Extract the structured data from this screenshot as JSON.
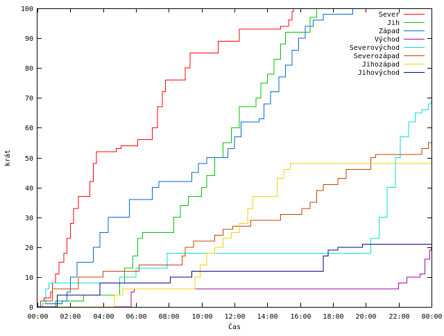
{
  "chart_data": {
    "type": "line",
    "title": "",
    "xlabel": "Čas",
    "ylabel": "krát",
    "xlim": [
      0,
      24
    ],
    "ylim": [
      0,
      100
    ],
    "grid": false,
    "legend_position": "top-right",
    "x_tick_labels": [
      "00:00",
      "02:00",
      "04:00",
      "06:00",
      "08:00",
      "10:00",
      "12:00",
      "14:00",
      "16:00",
      "18:00",
      "20:00",
      "22:00",
      "00:00"
    ],
    "y_tick_labels": [
      "0",
      "10",
      "20",
      "30",
      "40",
      "50",
      "60",
      "70",
      "80",
      "90",
      "100"
    ],
    "x_unit": "hours",
    "series": [
      {
        "name": "Sever",
        "color": "#ff0000",
        "points": [
          [
            0,
            0
          ],
          [
            0.2,
            2
          ],
          [
            0.4,
            3
          ],
          [
            0.7,
            3
          ],
          [
            0.8,
            5
          ],
          [
            0.9,
            8
          ],
          [
            1.1,
            11
          ],
          [
            1.3,
            15
          ],
          [
            1.6,
            18
          ],
          [
            1.8,
            23
          ],
          [
            2.0,
            28
          ],
          [
            2.2,
            33
          ],
          [
            2.5,
            37
          ],
          [
            3.0,
            37
          ],
          [
            3.2,
            42
          ],
          [
            3.4,
            48
          ],
          [
            3.6,
            52
          ],
          [
            4.3,
            52
          ],
          [
            4.8,
            53
          ],
          [
            5.1,
            54
          ],
          [
            5.9,
            54
          ],
          [
            6.1,
            56
          ],
          [
            6.8,
            56
          ],
          [
            7.0,
            60
          ],
          [
            7.3,
            67
          ],
          [
            7.6,
            72
          ],
          [
            7.8,
            76
          ],
          [
            8.7,
            76
          ],
          [
            9.0,
            80
          ],
          [
            9.3,
            85
          ],
          [
            10.8,
            85
          ],
          [
            11.0,
            89
          ],
          [
            12.0,
            89
          ],
          [
            12.3,
            93
          ],
          [
            14.8,
            94
          ],
          [
            15.3,
            96
          ],
          [
            15.5,
            99
          ],
          [
            15.6,
            100
          ]
        ]
      },
      {
        "name": "Jih",
        "color": "#00c000",
        "points": [
          [
            0,
            0
          ],
          [
            1.0,
            0
          ],
          [
            1.1,
            2
          ],
          [
            2.6,
            2
          ],
          [
            2.8,
            4
          ],
          [
            4.6,
            4
          ],
          [
            5.0,
            8
          ],
          [
            5.3,
            13
          ],
          [
            5.8,
            17
          ],
          [
            6.1,
            23
          ],
          [
            6.4,
            25
          ],
          [
            8.0,
            25
          ],
          [
            8.3,
            30
          ],
          [
            8.7,
            34
          ],
          [
            9.2,
            37
          ],
          [
            10.0,
            40
          ],
          [
            10.3,
            44
          ],
          [
            10.8,
            50
          ],
          [
            11.3,
            55
          ],
          [
            11.8,
            60
          ],
          [
            12.3,
            67
          ],
          [
            13.0,
            67
          ],
          [
            13.3,
            70
          ],
          [
            13.6,
            75
          ],
          [
            14.0,
            78
          ],
          [
            14.4,
            83
          ],
          [
            14.8,
            88
          ],
          [
            15.1,
            92
          ],
          [
            16.0,
            92
          ],
          [
            16.6,
            97
          ],
          [
            17.0,
            100
          ]
        ]
      },
      {
        "name": "Západ",
        "color": "#0066cc",
        "points": [
          [
            0,
            0
          ],
          [
            0.3,
            1
          ],
          [
            1.5,
            2
          ],
          [
            1.8,
            5
          ],
          [
            2.0,
            10
          ],
          [
            2.4,
            15
          ],
          [
            3.1,
            15
          ],
          [
            3.4,
            20
          ],
          [
            3.8,
            25
          ],
          [
            4.3,
            30
          ],
          [
            5.4,
            30
          ],
          [
            5.6,
            36
          ],
          [
            6.7,
            36
          ],
          [
            7.0,
            40
          ],
          [
            7.4,
            42
          ],
          [
            9.0,
            42
          ],
          [
            9.4,
            45
          ],
          [
            9.8,
            48
          ],
          [
            10.3,
            50
          ],
          [
            11.3,
            50
          ],
          [
            11.6,
            53
          ],
          [
            12.0,
            57
          ],
          [
            12.4,
            62
          ],
          [
            13.5,
            63
          ],
          [
            13.8,
            68
          ],
          [
            14.2,
            72
          ],
          [
            14.7,
            77
          ],
          [
            15.1,
            81
          ],
          [
            15.5,
            86
          ],
          [
            15.9,
            90
          ],
          [
            16.3,
            94
          ],
          [
            16.8,
            96
          ],
          [
            17.4,
            98
          ],
          [
            19.0,
            98
          ],
          [
            19.2,
            100
          ]
        ]
      },
      {
        "name": "Východ",
        "color": "#a000a0",
        "points": [
          [
            0,
            0
          ],
          [
            5.5,
            0
          ],
          [
            5.7,
            5
          ],
          [
            5.9,
            6
          ],
          [
            21.8,
            6
          ],
          [
            22.0,
            8
          ],
          [
            22.5,
            10
          ],
          [
            23.3,
            11
          ],
          [
            23.6,
            16
          ],
          [
            23.9,
            19
          ],
          [
            24,
            20
          ]
        ]
      },
      {
        "name": "Severovýchod",
        "color": "#00dddd",
        "points": [
          [
            0,
            0
          ],
          [
            0.3,
            1
          ],
          [
            0.5,
            6
          ],
          [
            0.7,
            8
          ],
          [
            4.8,
            8
          ],
          [
            5.0,
            10
          ],
          [
            6.0,
            13
          ],
          [
            7.6,
            13
          ],
          [
            7.9,
            18
          ],
          [
            20.0,
            18
          ],
          [
            20.3,
            23
          ],
          [
            20.8,
            30
          ],
          [
            21.3,
            40
          ],
          [
            21.8,
            50
          ],
          [
            22.1,
            57
          ],
          [
            22.6,
            62
          ],
          [
            23.0,
            65
          ],
          [
            23.4,
            66
          ],
          [
            23.8,
            68
          ],
          [
            24,
            69
          ]
        ]
      },
      {
        "name": "Severozápad",
        "color": "#c04000",
        "points": [
          [
            0,
            0
          ],
          [
            0.2,
            2
          ],
          [
            0.9,
            6
          ],
          [
            2.3,
            6
          ],
          [
            2.5,
            10
          ],
          [
            3.6,
            10
          ],
          [
            4.0,
            12
          ],
          [
            6.0,
            12
          ],
          [
            6.2,
            14
          ],
          [
            8.4,
            14
          ],
          [
            8.8,
            17
          ],
          [
            9.0,
            20
          ],
          [
            9.5,
            22
          ],
          [
            10.6,
            22
          ],
          [
            10.8,
            24
          ],
          [
            11.3,
            26
          ],
          [
            11.9,
            27
          ],
          [
            12.7,
            27
          ],
          [
            13.0,
            29
          ],
          [
            14.5,
            29
          ],
          [
            14.8,
            31
          ],
          [
            15.9,
            31
          ],
          [
            16.1,
            33
          ],
          [
            16.6,
            35
          ],
          [
            17.0,
            39
          ],
          [
            17.4,
            41
          ],
          [
            18.0,
            41
          ],
          [
            18.3,
            43
          ],
          [
            18.8,
            46
          ],
          [
            19.9,
            46
          ],
          [
            20.3,
            50
          ],
          [
            20.6,
            51
          ],
          [
            23.0,
            51
          ],
          [
            23.4,
            53
          ],
          [
            23.8,
            55
          ],
          [
            24,
            55
          ]
        ]
      },
      {
        "name": "Jihozápad",
        "color": "#ffcc00",
        "points": [
          [
            0,
            0
          ],
          [
            4.5,
            0
          ],
          [
            4.7,
            4
          ],
          [
            5.2,
            6
          ],
          [
            9.4,
            6
          ],
          [
            9.6,
            10
          ],
          [
            9.9,
            14
          ],
          [
            10.3,
            18
          ],
          [
            10.8,
            20
          ],
          [
            11.3,
            23
          ],
          [
            11.8,
            25
          ],
          [
            12.3,
            28
          ],
          [
            12.8,
            33
          ],
          [
            13.1,
            37
          ],
          [
            14.2,
            37
          ],
          [
            14.6,
            43
          ],
          [
            15.0,
            46
          ],
          [
            15.4,
            48
          ],
          [
            24,
            48
          ]
        ]
      },
      {
        "name": "Jihovýchod",
        "color": "#000080",
        "points": [
          [
            0,
            0
          ],
          [
            0.9,
            0
          ],
          [
            1.2,
            4
          ],
          [
            3.3,
            4
          ],
          [
            3.8,
            8
          ],
          [
            7.9,
            8
          ],
          [
            8.1,
            10
          ],
          [
            9.2,
            10
          ],
          [
            9.4,
            12
          ],
          [
            17.2,
            12
          ],
          [
            17.4,
            17
          ],
          [
            17.7,
            19
          ],
          [
            18.3,
            20
          ],
          [
            19.8,
            21
          ],
          [
            24,
            21
          ]
        ]
      }
    ]
  }
}
